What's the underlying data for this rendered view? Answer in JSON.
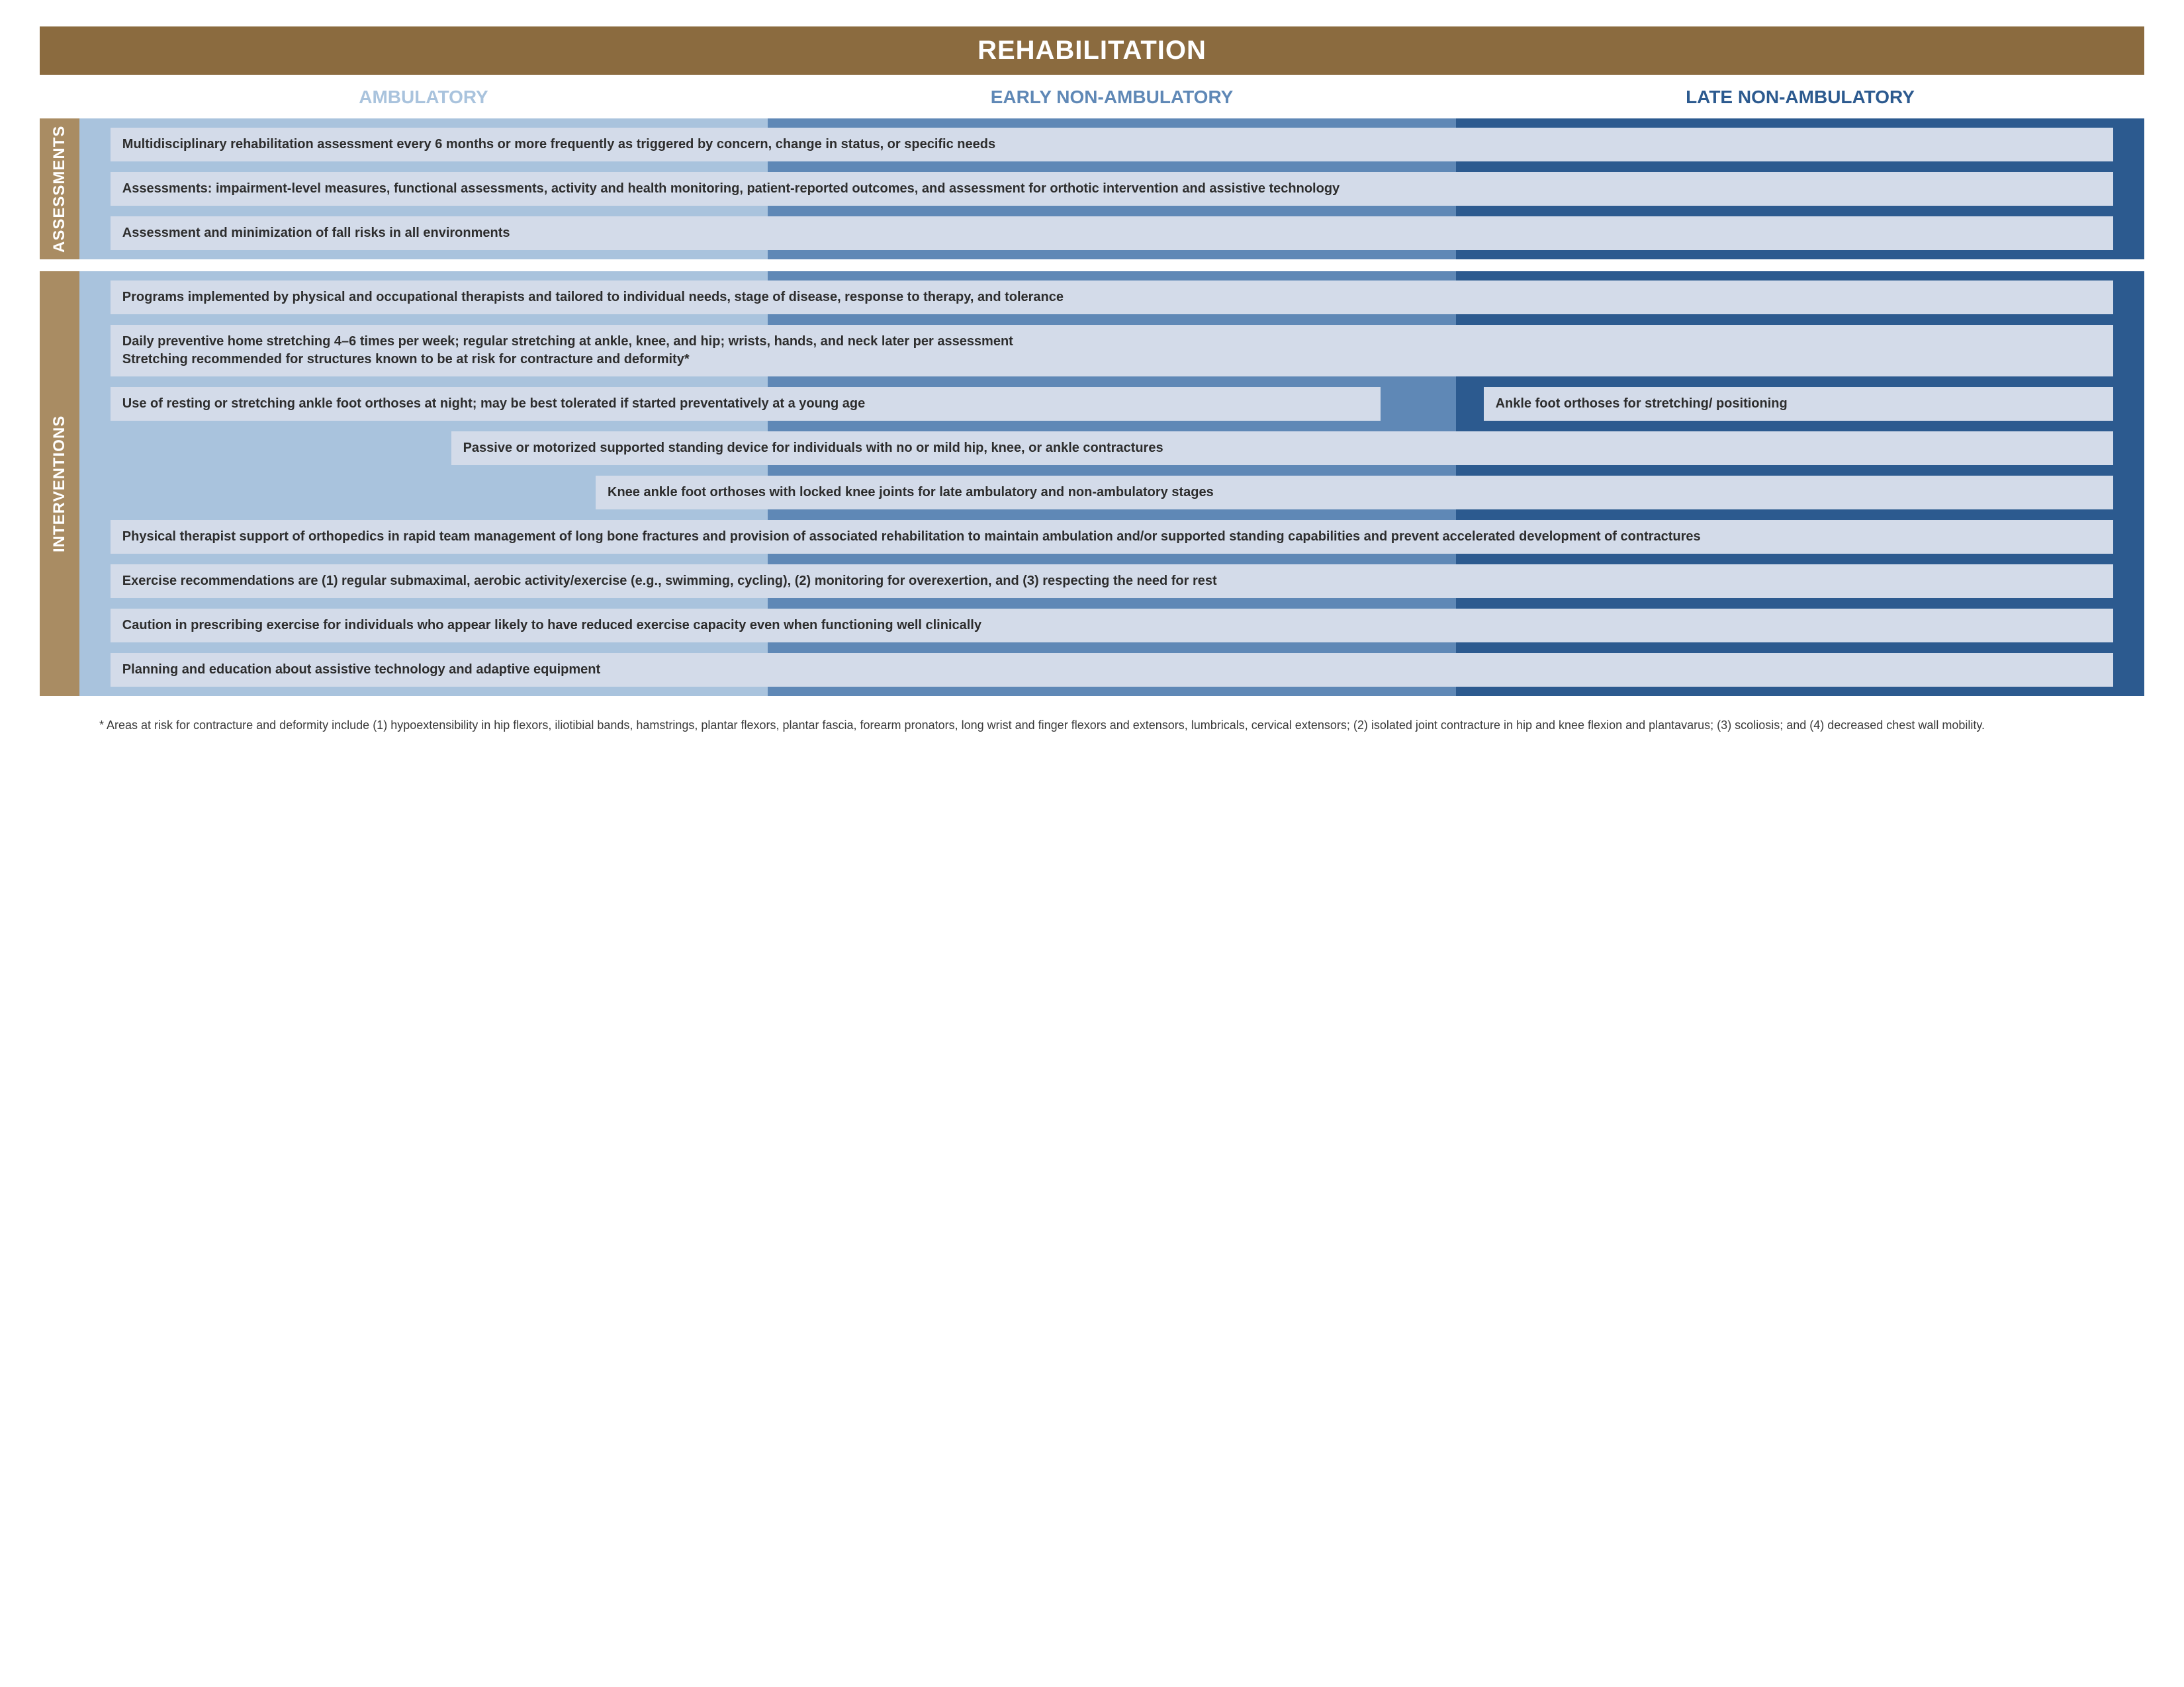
{
  "colors": {
    "title_bg": "#8b6b3f",
    "tab_bg": "#a98c63",
    "col1_header": "#a9c3dd",
    "col2_header": "#5f88b6",
    "col3_header": "#2c5a8f",
    "stripe1": "#a9c3dd",
    "stripe2": "#5f88b6",
    "stripe3": "#2c5a8f",
    "bar_bg": "#d3dbe9",
    "bar_text": "#2d2d2d"
  },
  "title": "REHABILITATION",
  "columns": [
    {
      "label": "AMBULATORY"
    },
    {
      "label": "EARLY NON-AMBULATORY"
    },
    {
      "label": "LATE NON-AMBULATORY"
    }
  ],
  "sections": [
    {
      "tab": "ASSESSMENTS",
      "rows": [
        {
          "bars": [
            {
              "text": "Multidisciplinary rehabilitation assessment every 6 months or more frequently as triggered by concern, change in status, or specific needs",
              "left_pct": 1.5,
              "right_pct": 1.5
            }
          ]
        },
        {
          "bars": [
            {
              "text": "Assessments: impairment-level measures, functional assessments, activity and health monitoring, patient-reported outcomes, and assessment for orthotic intervention and assistive technology",
              "left_pct": 1.5,
              "right_pct": 1.5
            }
          ]
        },
        {
          "bars": [
            {
              "text": "Assessment and minimization of fall risks in all environments",
              "left_pct": 1.5,
              "right_pct": 1.5
            }
          ]
        }
      ]
    },
    {
      "tab": "INTERVENTIONS",
      "rows": [
        {
          "bars": [
            {
              "text": "Programs implemented by physical and occupational therapists and tailored to individual needs, stage of disease, response to therapy, and tolerance",
              "left_pct": 1.5,
              "right_pct": 1.5
            }
          ]
        },
        {
          "bars": [
            {
              "text": "Daily preventive home stretching 4–6 times per week; regular stretching at ankle, knee, and hip; wrists, hands, and neck later per assessment\nStretching recommended for structures known to be at risk for contracture and deformity*",
              "left_pct": 1.5,
              "right_pct": 1.5
            }
          ]
        },
        {
          "bars": [
            {
              "text": "Use of resting or stretching ankle foot orthoses at night; may be best tolerated if started preventatively at a young age",
              "left_pct": 1.5,
              "right_pct": 37
            },
            {
              "text": "Ankle foot orthoses for stretching/ positioning",
              "left_pct": 68,
              "right_pct": 1.5
            }
          ]
        },
        {
          "bars": [
            {
              "text": "Passive or motorized supported standing device for individuals with no or mild hip, knee, or ankle contractures",
              "left_pct": 18,
              "right_pct": 1.5
            }
          ]
        },
        {
          "bars": [
            {
              "text": "Knee ankle foot orthoses with locked knee joints for late ambulatory and non-ambulatory stages",
              "left_pct": 25,
              "right_pct": 1.5
            }
          ]
        },
        {
          "bars": [
            {
              "text": "Physical therapist support of orthopedics in rapid team management of long bone fractures and provision of associated rehabilitation to maintain ambulation and/or supported standing capabilities and prevent accelerated development of contractures",
              "left_pct": 1.5,
              "right_pct": 1.5
            }
          ]
        },
        {
          "bars": [
            {
              "text": "Exercise recommendations are (1) regular submaximal, aerobic activity/exercise (e.g., swimming, cycling), (2) monitoring for overexertion, and (3) respecting the need for rest",
              "left_pct": 1.5,
              "right_pct": 1.5
            }
          ]
        },
        {
          "bars": [
            {
              "text": "Caution in prescribing exercise for individuals who appear likely to have reduced exercise capacity even when functioning well clinically",
              "left_pct": 1.5,
              "right_pct": 1.5
            }
          ]
        },
        {
          "bars": [
            {
              "text": "Planning and education about assistive technology and adaptive equipment",
              "left_pct": 1.5,
              "right_pct": 1.5
            }
          ]
        }
      ]
    }
  ],
  "footnote": "* Areas at risk for contracture and deformity include (1) hypoextensibility in hip flexors, iliotibial bands, hamstrings, plantar flexors, plantar fascia, forearm pronators, long wrist and finger flexors and extensors, lumbricals, cervical extensors; (2) isolated joint contracture in hip and knee flexion and plantavarus; (3) scoliosis; and (4) decreased chest wall mobility."
}
